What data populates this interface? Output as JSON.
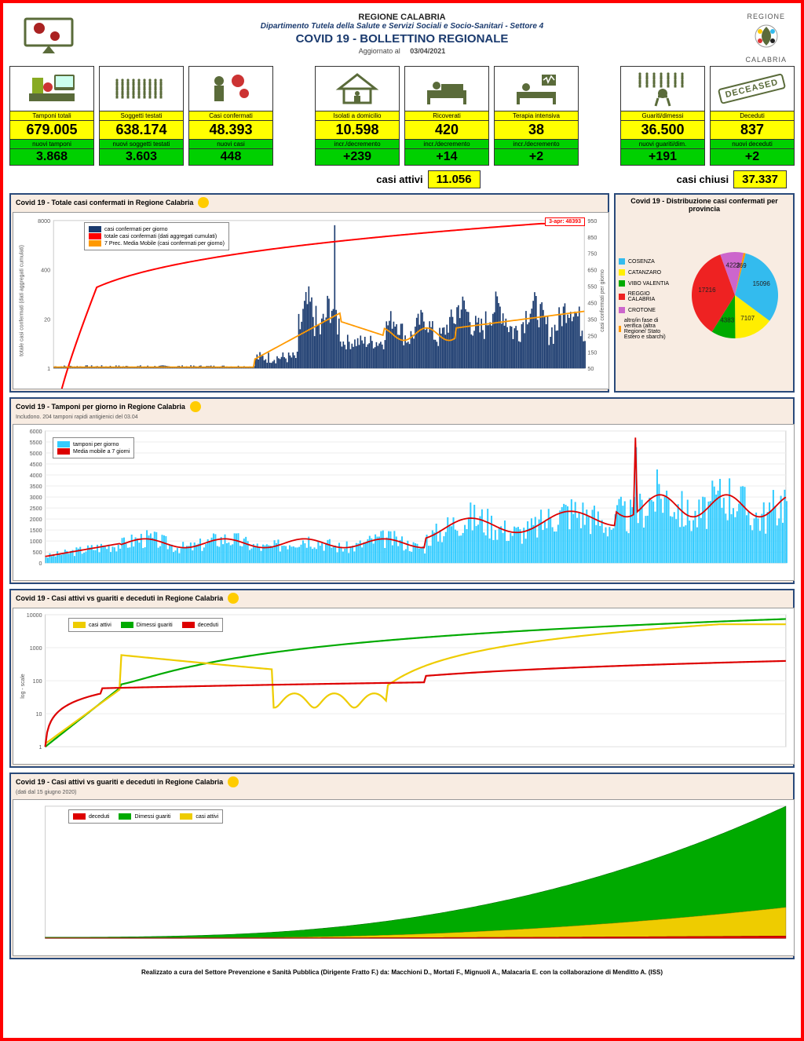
{
  "header": {
    "region_name": "REGIONE CALABRIA",
    "department": "Dipartimento Tutela della Salute e Servizi Sociali e Socio-Sanitari - Settore 4",
    "title": "COVID 19 - BOLLETTINO REGIONALE",
    "updated_label": "Aggiornato al",
    "updated_date": "03/04/2021",
    "logo_top": "REGIONE",
    "logo_bottom": "CALABRIA"
  },
  "stats": {
    "group1": [
      {
        "label": "Tamponi totali",
        "value": "679.005",
        "sublabel": "nuovi tamponi",
        "subvalue": "3.868",
        "icon": "lab"
      },
      {
        "label": "Soggetti testati",
        "value": "638.174",
        "sublabel": "nuovi soggetti testati",
        "subvalue": "3.603",
        "icon": "people"
      },
      {
        "label": "Casi confermati",
        "value": "48.393",
        "sublabel": "nuovi casi",
        "subvalue": "448",
        "icon": "virus-person"
      }
    ],
    "group2": [
      {
        "label": "Isolati a domicilio",
        "value": "10.598",
        "sublabel": "incr./decremento",
        "subvalue": "+239",
        "icon": "house"
      },
      {
        "label": "Ricoverati",
        "value": "420",
        "sublabel": "incr./decremento",
        "subvalue": "+14",
        "icon": "bed"
      },
      {
        "label": "Terapia intensiva",
        "value": "38",
        "sublabel": "incr./decremento",
        "subvalue": "+2",
        "icon": "icu"
      }
    ],
    "group3": [
      {
        "label": "Guariti/dimessi",
        "value": "36.500",
        "sublabel": "nuovi guariti/dim.",
        "subvalue": "+191",
        "icon": "recovered"
      },
      {
        "label": "Deceduti",
        "value": "837",
        "sublabel": "nuovi deceduti",
        "subvalue": "+2",
        "icon": "deceased"
      }
    ]
  },
  "summary": {
    "active_label": "casi attivi",
    "active_value": "11.056",
    "closed_label": "casi chiusi",
    "closed_value": "37.337"
  },
  "chart1": {
    "title": "Covid 19 - Totale casi confermati in Regione Calabria",
    "annotation": "3-apr: 48393",
    "legend": [
      {
        "label": "casi confermati per giorno",
        "color": "#1a3a6e"
      },
      {
        "label": "totale casi confermati (dati aggregati cumulati)",
        "color": "#ff0000"
      },
      {
        "label": "7 Prec. Media Mobile (casi confermati per giorno)",
        "color": "#ff9900"
      }
    ],
    "y_left_label": "totale casi confermati (dati aggregati cumulati)",
    "y_right_label": "casi confermati per giorno",
    "y_left_ticks": [
      "1",
      "20",
      "400",
      "8000"
    ],
    "y_right_ticks": [
      "50",
      "150",
      "250",
      "350",
      "450",
      "550",
      "650",
      "750",
      "850",
      "950"
    ],
    "bar_color": "#1a3a6e",
    "cumulative_color": "#ff0000",
    "ma_color": "#ff9900",
    "background": "#ffffff",
    "type": "combo-bar-line-log"
  },
  "pie": {
    "title": "Covid 19 - Distribuzione casi confermati per provincia",
    "slices": [
      {
        "name": "COSENZA",
        "value": 15096,
        "color": "#33bbee"
      },
      {
        "name": "CATANZARO",
        "value": 7107,
        "color": "#ffee00"
      },
      {
        "name": "VIBO VALENTIA",
        "value": 4383,
        "color": "#00aa00"
      },
      {
        "name": "REGGIO CALABRIA",
        "value": 17216,
        "color": "#ee2222"
      },
      {
        "name": "CROTONE",
        "value": 4222,
        "color": "#cc66cc"
      },
      {
        "name": "altro/in fase di verifica (altra Regione/ Stato Estero e sbarchi)",
        "value": 369,
        "color": "#ff9900"
      }
    ],
    "label_values": [
      "369",
      "4222",
      "15096",
      "7107",
      "4383",
      "17216"
    ]
  },
  "chart2": {
    "title": "Covid 19 - Tamponi per giorno in Regione Calabria",
    "subtitle": "Includono. 204 tamponi rapidi antigienici del 03.04",
    "legend": [
      {
        "label": "tamponi per giorno",
        "color": "#33ccff"
      },
      {
        "label": "Media mobile a 7 giorni",
        "color": "#dd0000"
      }
    ],
    "y_ticks": [
      "0",
      "500",
      "1000",
      "1500",
      "2000",
      "2500",
      "3000",
      "3500",
      "4000",
      "4500",
      "5000",
      "5500",
      "6000"
    ],
    "bar_color": "#33ccff",
    "line_color": "#dd0000",
    "type": "bar-line"
  },
  "chart3": {
    "title": "Covid 19 - Casi attivi vs guariti e deceduti in Regione Calabria",
    "legend": [
      {
        "label": "casi attivi",
        "color": "#eecc00",
        "marker": "diamond"
      },
      {
        "label": "Dimessi guariti",
        "color": "#00aa00",
        "marker": "circle"
      },
      {
        "label": "deceduti",
        "color": "#dd0000",
        "marker": "triangle"
      }
    ],
    "y_label": "log - scale",
    "y_ticks": [
      "1",
      "10",
      "100",
      "1000",
      "10000"
    ],
    "type": "line-log"
  },
  "chart4": {
    "title": "Covid 19 - Casi attivi vs guariti e deceduti in Regione Calabria",
    "subtitle": "(dati dal 15 giugno 2020)",
    "legend": [
      {
        "label": "deceduti",
        "color": "#dd0000"
      },
      {
        "label": "Dimessi guariti",
        "color": "#00aa00"
      },
      {
        "label": "casi attivi",
        "color": "#eecc00"
      }
    ],
    "type": "stacked-area"
  },
  "footer": "Realizzato a cura del Settore Prevenzione e Sanità Pubblica (Dirigente Fratto F.) da: Macchioni D., Mortati F., Mignuoli A., Malacaria E. con la collaborazione di Menditto A. (ISS)"
}
